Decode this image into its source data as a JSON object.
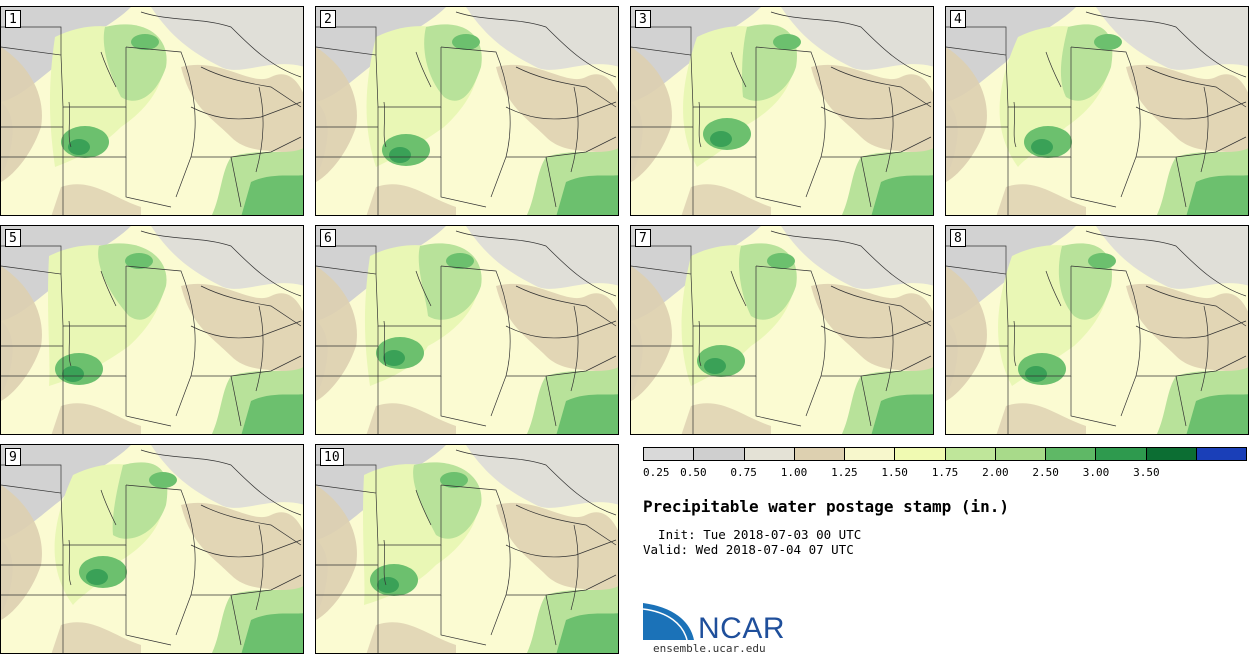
{
  "title": "Precipitable water postage stamp (in.)",
  "init_label": "  Init: Tue 2018-07-03 00 UTC",
  "valid_label": "Valid: Wed 2018-07-04 07 UTC",
  "logo_text": "NCAR",
  "website": "ensemble.ucar.edu",
  "panels": [
    "1",
    "2",
    "3",
    "4",
    "5",
    "6",
    "7",
    "8",
    "9",
    "10"
  ],
  "colorbar": {
    "ticks": [
      "0.25",
      "0.50",
      "0.75",
      "1.00",
      "1.25",
      "1.50",
      "1.75",
      "2.00",
      "2.50",
      "3.00",
      "3.50"
    ],
    "colors": [
      "#d9d9d9",
      "#cfcfcf",
      "#e4e2d6",
      "#ddd0b0",
      "#f7f7cc",
      "#f0fab2",
      "#bfe69a",
      "#a8da8a",
      "#5fb866",
      "#2e9a4e",
      "#0c6e33",
      "#1a3fb8"
    ]
  },
  "map_colors": {
    "gray": "#d2d2d2",
    "light_gray": "#e0dfd8",
    "tan": "#ddcfb0",
    "cream": "#fbfbd2",
    "light_green": "#e9f7b5",
    "green": "#b8e29a",
    "med_green": "#6cc06e",
    "dark_green": "#3aa157"
  }
}
